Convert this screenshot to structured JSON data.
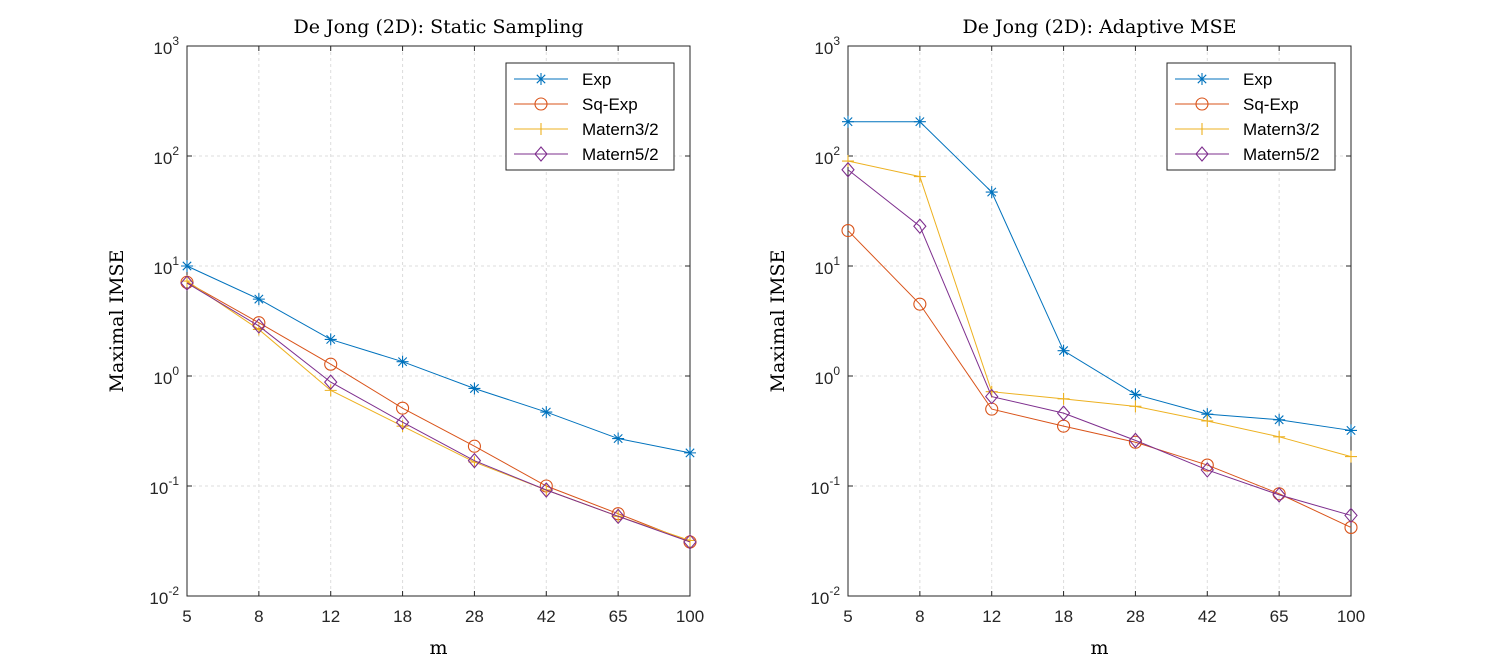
{
  "chart_data": [
    {
      "type": "line",
      "title": "De Jong (2D): Static Sampling",
      "xlabel": "m",
      "ylabel": "Maximal IMSE",
      "x": [
        5,
        8,
        12,
        18,
        28,
        42,
        65,
        100
      ],
      "xticks": [
        "5",
        "8",
        "12",
        "18",
        "28",
        "42",
        "65",
        "100"
      ],
      "y_scale": "log",
      "ylim": [
        0.01,
        1000
      ],
      "yticks": [
        {
          "base": "10",
          "exp": "-2"
        },
        {
          "base": "10",
          "exp": "-1"
        },
        {
          "base": "10",
          "exp": "0"
        },
        {
          "base": "10",
          "exp": "1"
        },
        {
          "base": "10",
          "exp": "2"
        },
        {
          "base": "10",
          "exp": "3"
        }
      ],
      "grid": true,
      "legend_position": "top-right",
      "series": [
        {
          "name": "Exp",
          "marker": "asterisk",
          "color": "#0072BD",
          "values": [
            10,
            5,
            2.15,
            1.35,
            0.77,
            0.47,
            0.27,
            0.2
          ]
        },
        {
          "name": "Sq-Exp",
          "marker": "circle",
          "color": "#D95319",
          "values": [
            7.1,
            3.05,
            1.28,
            0.51,
            0.23,
            0.1,
            0.056,
            0.031
          ]
        },
        {
          "name": "Matern3/2",
          "marker": "plus",
          "color": "#EDB120",
          "values": [
            7.3,
            2.65,
            0.74,
            0.35,
            0.165,
            0.092,
            0.053,
            0.032
          ]
        },
        {
          "name": "Matern5/2",
          "marker": "diamond",
          "color": "#7E2F8E",
          "values": [
            7.0,
            2.85,
            0.88,
            0.38,
            0.17,
            0.092,
            0.053,
            0.031
          ]
        }
      ]
    },
    {
      "type": "line",
      "title": "De Jong (2D): Adaptive MSE",
      "xlabel": "m",
      "ylabel": "Maximal IMSE",
      "x": [
        5,
        8,
        12,
        18,
        28,
        42,
        65,
        100
      ],
      "xticks": [
        "5",
        "8",
        "12",
        "18",
        "28",
        "42",
        "65",
        "100"
      ],
      "y_scale": "log",
      "ylim": [
        0.01,
        1000
      ],
      "yticks": [
        {
          "base": "10",
          "exp": "-2"
        },
        {
          "base": "10",
          "exp": "-1"
        },
        {
          "base": "10",
          "exp": "0"
        },
        {
          "base": "10",
          "exp": "1"
        },
        {
          "base": "10",
          "exp": "2"
        },
        {
          "base": "10",
          "exp": "3"
        }
      ],
      "grid": true,
      "legend_position": "top-right",
      "series": [
        {
          "name": "Exp",
          "marker": "asterisk",
          "color": "#0072BD",
          "values": [
            205,
            205,
            47,
            1.7,
            0.68,
            0.45,
            0.4,
            0.32
          ]
        },
        {
          "name": "Sq-Exp",
          "marker": "circle",
          "color": "#D95319",
          "values": [
            21,
            4.5,
            0.5,
            0.35,
            0.25,
            0.155,
            0.085,
            0.042
          ]
        },
        {
          "name": "Matern3/2",
          "marker": "plus",
          "color": "#EDB120",
          "values": [
            90,
            65,
            0.72,
            0.62,
            0.53,
            0.39,
            0.28,
            0.185
          ]
        },
        {
          "name": "Matern5/2",
          "marker": "diamond",
          "color": "#7E2F8E",
          "values": [
            75,
            23,
            0.65,
            0.46,
            0.26,
            0.14,
            0.083,
            0.054
          ]
        }
      ]
    }
  ]
}
